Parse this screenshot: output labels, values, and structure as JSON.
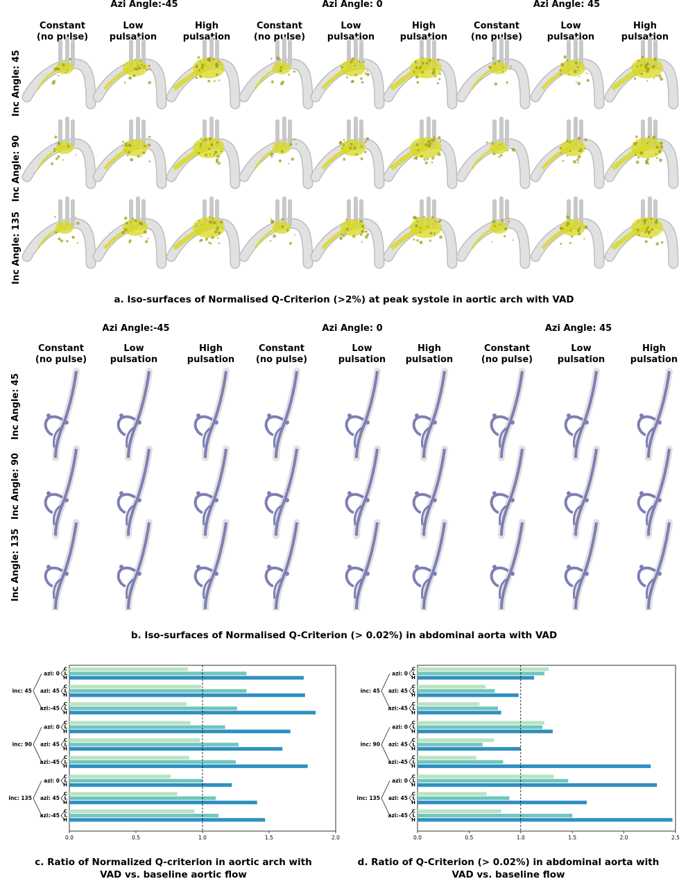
{
  "panel_a": {
    "azi_headers": [
      "Azi Angle:-45",
      "Azi Angle: 0",
      "Azi Angle: 45"
    ],
    "column_headers": [
      [
        "Constant",
        "(no pulse)"
      ],
      [
        "Low",
        "pulsation"
      ],
      [
        "High",
        "pulsation"
      ],
      [
        "Constant",
        "(no pulse)"
      ],
      [
        "Low",
        "pulsation"
      ],
      [
        "High",
        "pulsation"
      ],
      [
        "Constant",
        "(no pulse)"
      ],
      [
        "Low",
        "pulsation"
      ],
      [
        "High",
        "pulsation"
      ]
    ],
    "row_headers": [
      "Inc Angle: 45",
      "Inc Angle: 90",
      "Inc Angle: 135"
    ],
    "caption": "a. Iso-surfaces of Normalised Q-Criterion (>2%) at peak systole in aortic arch with VAD",
    "surface_color": "#d8d81e",
    "vessel_color": "#e1e1e1"
  },
  "panel_b": {
    "azi_headers": [
      "Azi Angle:-45",
      "Azi Angle: 0",
      "Azi Angle: 45"
    ],
    "column_headers": [
      [
        "Constant",
        "(no pulse)"
      ],
      [
        "Low",
        "pulsation"
      ],
      [
        "High",
        "pulsation"
      ],
      [
        "Constant",
        "(no pulse)"
      ],
      [
        "Low",
        "pulsation"
      ],
      [
        "High",
        "pulsation"
      ],
      [
        "Constant",
        "(no pulse)"
      ],
      [
        "Low",
        "pulsation"
      ],
      [
        "High",
        "pulsation"
      ]
    ],
    "row_headers": [
      "Inc Angle: 45",
      "Inc Angle: 90",
      "Inc Angle: 135"
    ],
    "caption": "b. Iso-surfaces of Normalised Q-Criterion (> 0.02%) in abdominal aorta with VAD",
    "surface_color": "#7d7fb4",
    "vessel_color": "#e1e1e1"
  },
  "panel_c": {
    "caption_line1": "c. Ratio of Normalized Q-criterion in aortic arch with",
    "caption_line2": "VAD vs. baseline aortic flow"
  },
  "panel_d": {
    "caption_line1": "d. Ratio of Q-Criterion (> 0.02%) in abdominal aorta with",
    "caption_line2": "VAD vs. baseline flow"
  },
  "chart_data": [
    {
      "type": "bar",
      "orientation": "horizontal",
      "groups": [
        "inc: 45",
        "inc: 90",
        "inc: 135"
      ],
      "subgroups": [
        "azi: 0",
        "azi: 45",
        "azi:-45"
      ],
      "bar_labels": [
        "C",
        "L",
        "H"
      ],
      "colors": {
        "C": "#b9e3c3",
        "L": "#70c6bd",
        "H": "#2f8fc0"
      },
      "xlim": [
        0,
        2.0
      ],
      "xticks": [
        "0.0",
        "0.5",
        "1.0",
        "1.5",
        "2.0"
      ],
      "reference_line": 1.0,
      "values": [
        [
          0.89,
          1.33,
          1.76
        ],
        [
          0.99,
          1.33,
          1.77
        ],
        [
          0.88,
          1.26,
          1.85
        ],
        [
          0.91,
          1.17,
          1.66
        ],
        [
          0.98,
          1.27,
          1.6
        ],
        [
          0.9,
          1.25,
          1.79
        ],
        [
          0.76,
          1.0,
          1.22
        ],
        [
          0.81,
          1.1,
          1.41
        ],
        [
          0.94,
          1.12,
          1.47
        ]
      ]
    },
    {
      "type": "bar",
      "orientation": "horizontal",
      "groups": [
        "inc: 45",
        "inc: 90",
        "inc: 135"
      ],
      "subgroups": [
        "azi: 0",
        "azi: 45",
        "azi:-45"
      ],
      "bar_labels": [
        "C",
        "L",
        "H"
      ],
      "colors": {
        "C": "#b9e3c3",
        "L": "#70c6bd",
        "H": "#2f8fc0"
      },
      "xlim": [
        0,
        2.5
      ],
      "xticks": [
        "0.0",
        "0.5",
        "1.0",
        "1.5",
        "2.0",
        "2.5"
      ],
      "reference_line": 1.0,
      "values": [
        [
          1.27,
          1.23,
          1.13
        ],
        [
          0.66,
          0.75,
          0.98
        ],
        [
          0.6,
          0.78,
          0.81
        ],
        [
          1.23,
          1.21,
          1.31
        ],
        [
          0.74,
          0.63,
          1.0
        ],
        [
          0.57,
          0.83,
          2.26
        ],
        [
          1.32,
          1.46,
          2.32
        ],
        [
          0.67,
          0.89,
          1.64
        ],
        [
          0.81,
          1.5,
          2.47
        ]
      ]
    }
  ]
}
